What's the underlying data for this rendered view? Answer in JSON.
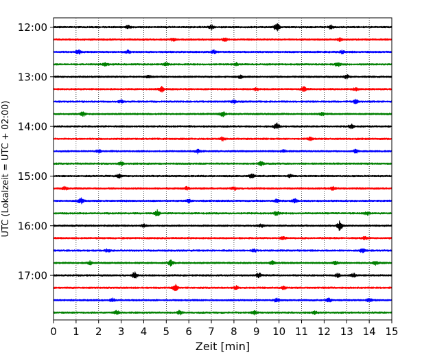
{
  "chart_data": {
    "type": "line",
    "title": "",
    "xlabel": "Zeit  [min]",
    "ylabel": "UTC (Lokalzeit = UTC + 02:00)",
    "xlim": [
      0,
      15
    ],
    "x_ticks": [
      0,
      1,
      2,
      3,
      4,
      5,
      6,
      7,
      8,
      9,
      10,
      11,
      12,
      13,
      14,
      15
    ],
    "y_tick_labels": [
      "12:00",
      "13:00",
      "14:00",
      "15:00",
      "16:00",
      "17:00"
    ],
    "rows_per_hour": 4,
    "row_minutes": 15,
    "grid": {
      "x": "dotted",
      "y": "none"
    },
    "trace_color_cycle": [
      "#000000",
      "#ff0000",
      "#0000ff",
      "#008000"
    ],
    "series": [
      {
        "start": "12:00",
        "color": "#000000",
        "events": [
          {
            "t": 3.3,
            "amp": 0.9
          },
          {
            "t": 7.0,
            "amp": 1.0
          },
          {
            "t": 9.9,
            "amp": 2.3
          },
          {
            "t": 12.3,
            "amp": 0.9
          }
        ]
      },
      {
        "start": "12:15",
        "color": "#ff0000",
        "events": [
          {
            "t": 5.3,
            "amp": 0.8
          },
          {
            "t": 7.6,
            "amp": 0.8
          },
          {
            "t": 12.7,
            "amp": 0.8
          }
        ]
      },
      {
        "start": "12:30",
        "color": "#0000ff",
        "events": [
          {
            "t": 1.1,
            "amp": 1.3
          },
          {
            "t": 3.3,
            "amp": 0.9
          },
          {
            "t": 7.1,
            "amp": 0.9
          },
          {
            "t": 12.8,
            "amp": 0.8
          }
        ]
      },
      {
        "start": "12:45",
        "color": "#008000",
        "events": [
          {
            "t": 2.3,
            "amp": 0.9
          },
          {
            "t": 5.0,
            "amp": 0.9
          },
          {
            "t": 8.1,
            "amp": 0.8
          },
          {
            "t": 12.6,
            "amp": 1.2
          }
        ]
      },
      {
        "start": "13:00",
        "color": "#000000",
        "events": [
          {
            "t": 4.2,
            "amp": 0.8
          },
          {
            "t": 8.3,
            "amp": 0.8
          },
          {
            "t": 13.0,
            "amp": 1.0
          }
        ]
      },
      {
        "start": "13:15",
        "color": "#ff0000",
        "events": [
          {
            "t": 4.8,
            "amp": 1.4
          },
          {
            "t": 9.0,
            "amp": 0.8
          },
          {
            "t": 11.1,
            "amp": 1.3
          },
          {
            "t": 13.4,
            "amp": 0.8
          }
        ]
      },
      {
        "start": "13:30",
        "color": "#0000ff",
        "events": [
          {
            "t": 3.0,
            "amp": 0.8
          },
          {
            "t": 8.0,
            "amp": 0.8
          },
          {
            "t": 13.4,
            "amp": 1.0
          }
        ]
      },
      {
        "start": "13:45",
        "color": "#008000",
        "events": [
          {
            "t": 1.3,
            "amp": 1.2
          },
          {
            "t": 7.5,
            "amp": 1.6
          },
          {
            "t": 11.9,
            "amp": 0.8
          }
        ]
      },
      {
        "start": "14:00",
        "color": "#000000",
        "events": [
          {
            "t": 9.9,
            "amp": 1.8
          },
          {
            "t": 13.2,
            "amp": 1.3
          }
        ]
      },
      {
        "start": "14:15",
        "color": "#ff0000",
        "events": [
          {
            "t": 7.5,
            "amp": 1.0
          },
          {
            "t": 11.4,
            "amp": 0.8
          }
        ]
      },
      {
        "start": "14:30",
        "color": "#0000ff",
        "events": [
          {
            "t": 2.0,
            "amp": 0.9
          },
          {
            "t": 6.4,
            "amp": 1.1
          },
          {
            "t": 10.2,
            "amp": 0.8
          },
          {
            "t": 13.4,
            "amp": 0.9
          }
        ]
      },
      {
        "start": "14:45",
        "color": "#008000",
        "events": [
          {
            "t": 3.0,
            "amp": 0.9
          },
          {
            "t": 9.2,
            "amp": 1.0
          }
        ]
      },
      {
        "start": "15:00",
        "color": "#000000",
        "events": [
          {
            "t": 2.9,
            "amp": 1.2
          },
          {
            "t": 8.8,
            "amp": 1.2
          },
          {
            "t": 10.5,
            "amp": 0.8
          }
        ]
      },
      {
        "start": "15:15",
        "color": "#ff0000",
        "events": [
          {
            "t": 0.5,
            "amp": 0.9
          },
          {
            "t": 5.9,
            "amp": 0.9
          },
          {
            "t": 8.0,
            "amp": 0.8
          },
          {
            "t": 12.4,
            "amp": 0.9
          }
        ]
      },
      {
        "start": "15:30",
        "color": "#0000ff",
        "events": [
          {
            "t": 1.2,
            "amp": 1.6
          },
          {
            "t": 6.0,
            "amp": 0.8
          },
          {
            "t": 9.9,
            "amp": 0.8
          },
          {
            "t": 10.7,
            "amp": 1.0
          }
        ]
      },
      {
        "start": "15:45",
        "color": "#008000",
        "events": [
          {
            "t": 4.6,
            "amp": 1.8
          },
          {
            "t": 9.9,
            "amp": 1.2
          },
          {
            "t": 13.9,
            "amp": 0.8
          }
        ]
      },
      {
        "start": "16:00",
        "color": "#000000",
        "events": [
          {
            "t": 4.0,
            "amp": 0.8
          },
          {
            "t": 9.2,
            "amp": 0.8
          },
          {
            "t": 12.7,
            "amp": 2.6
          }
        ]
      },
      {
        "start": "16:15",
        "color": "#ff0000",
        "events": [
          {
            "t": 10.2,
            "amp": 0.7
          },
          {
            "t": 13.8,
            "amp": 0.7
          }
        ]
      },
      {
        "start": "16:30",
        "color": "#0000ff",
        "events": [
          {
            "t": 2.4,
            "amp": 0.8
          },
          {
            "t": 8.9,
            "amp": 0.8
          },
          {
            "t": 13.7,
            "amp": 1.0
          }
        ]
      },
      {
        "start": "16:45",
        "color": "#008000",
        "events": [
          {
            "t": 1.6,
            "amp": 1.0
          },
          {
            "t": 5.2,
            "amp": 1.6
          },
          {
            "t": 9.7,
            "amp": 1.0
          },
          {
            "t": 12.5,
            "amp": 1.0
          },
          {
            "t": 14.3,
            "amp": 1.1
          }
        ]
      },
      {
        "start": "17:00",
        "color": "#000000",
        "events": [
          {
            "t": 3.6,
            "amp": 2.0
          },
          {
            "t": 9.1,
            "amp": 1.3
          },
          {
            "t": 12.6,
            "amp": 0.9
          },
          {
            "t": 13.3,
            "amp": 0.9
          }
        ]
      },
      {
        "start": "17:15",
        "color": "#ff0000",
        "events": [
          {
            "t": 5.4,
            "amp": 1.8
          },
          {
            "t": 8.1,
            "amp": 1.0
          },
          {
            "t": 10.2,
            "amp": 0.9
          }
        ]
      },
      {
        "start": "17:30",
        "color": "#0000ff",
        "events": [
          {
            "t": 2.6,
            "amp": 1.0
          },
          {
            "t": 9.9,
            "amp": 1.1
          },
          {
            "t": 12.2,
            "amp": 1.0
          },
          {
            "t": 14.0,
            "amp": 1.1
          }
        ]
      },
      {
        "start": "17:45",
        "color": "#008000",
        "events": [
          {
            "t": 2.8,
            "amp": 0.9
          },
          {
            "t": 5.6,
            "amp": 1.0
          },
          {
            "t": 8.9,
            "amp": 1.0
          },
          {
            "t": 11.6,
            "amp": 0.8
          }
        ]
      }
    ]
  }
}
